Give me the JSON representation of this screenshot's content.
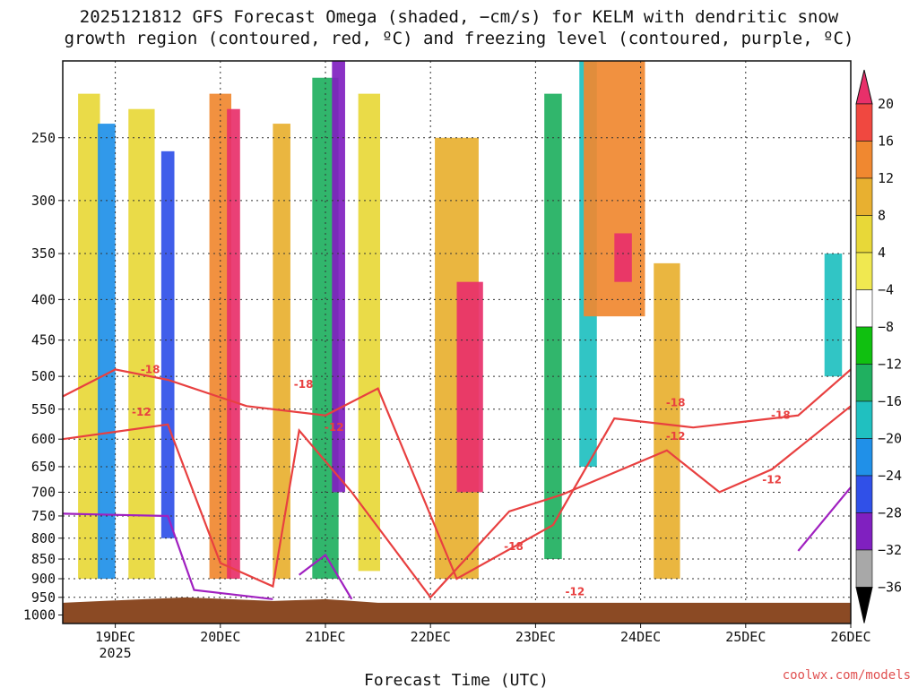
{
  "title_line1": "2025121812 GFS Forecast Omega (shaded, −cm/s) for KELM with dendritic snow",
  "title_line2": "growth region (contoured, red, ºC) and freezing level (contoured, purple, ºC)",
  "credit": "coolwx.com/models",
  "chart_data": {
    "type": "heatmap",
    "xlabel": "Forecast Time (UTC)",
    "ylabel": "",
    "x_ticks": [
      "19DEC",
      "20DEC",
      "21DEC",
      "22DEC",
      "23DEC",
      "24DEC",
      "25DEC",
      "26DEC"
    ],
    "x_tick_year": "2025",
    "xlim_hours": [
      12,
      192
    ],
    "y_ticks": [
      250,
      300,
      350,
      400,
      450,
      500,
      550,
      600,
      650,
      700,
      750,
      800,
      850,
      900,
      950,
      1000
    ],
    "ylim_hpa": [
      200,
      1025
    ],
    "y_scale": "log-pressure (inverted)",
    "grid": true,
    "colorbar": {
      "levels": [
        "20",
        "16",
        "12",
        "8",
        "4",
        "−4",
        "−8",
        "−12",
        "−16",
        "−20",
        "−24",
        "−28",
        "−32",
        "−36"
      ],
      "colors": [
        "#e8306a",
        "#f04840",
        "#f08830",
        "#e8b030",
        "#e8d838",
        "#f0e850",
        "#ffffff",
        "#10c010",
        "#20b060",
        "#20c0c0",
        "#2090e8",
        "#3050e8",
        "#8020c0",
        "#a8a8a8",
        "#000000"
      ]
    },
    "omega_columns": [
      {
        "h": 18,
        "w": 5,
        "top": 220,
        "bot": 900,
        "v": 6
      },
      {
        "h": 22,
        "w": 4,
        "top": 240,
        "bot": 900,
        "v": -16
      },
      {
        "h": 30,
        "w": 6,
        "top": 230,
        "bot": 900,
        "v": 6
      },
      {
        "h": 36,
        "w": 3,
        "top": 260,
        "bot": 800,
        "v": -20
      },
      {
        "h": 48,
        "w": 5,
        "top": 220,
        "bot": 900,
        "v": 14
      },
      {
        "h": 51,
        "w": 3,
        "top": 230,
        "bot": 900,
        "v": 20
      },
      {
        "h": 62,
        "w": 4,
        "top": 240,
        "bot": 900,
        "v": 8
      },
      {
        "h": 72,
        "w": 6,
        "top": 210,
        "bot": 900,
        "v": -8
      },
      {
        "h": 75,
        "w": 3,
        "top": 200,
        "bot": 700,
        "v": -24
      },
      {
        "h": 82,
        "w": 5,
        "top": 220,
        "bot": 880,
        "v": 6
      },
      {
        "h": 102,
        "w": 10,
        "top": 250,
        "bot": 900,
        "v": 8
      },
      {
        "h": 105,
        "w": 6,
        "top": 380,
        "bot": 700,
        "v": 20
      },
      {
        "h": 124,
        "w": 4,
        "top": 220,
        "bot": 850,
        "v": -8
      },
      {
        "h": 132,
        "w": 4,
        "top": 200,
        "bot": 650,
        "v": -12
      },
      {
        "h": 138,
        "w": 14,
        "top": 200,
        "bot": 420,
        "v": 12
      },
      {
        "h": 140,
        "w": 4,
        "top": 330,
        "bot": 380,
        "v": 20
      },
      {
        "h": 150,
        "w": 6,
        "top": 360,
        "bot": 900,
        "v": 8
      },
      {
        "h": 188,
        "w": 4,
        "top": 350,
        "bot": 500,
        "v": -12
      }
    ],
    "contours": [
      {
        "label": "-18",
        "color": "#e84040",
        "points": [
          [
            12,
            530
          ],
          [
            24,
            490
          ],
          [
            36,
            505
          ],
          [
            54,
            545
          ],
          [
            72,
            560
          ],
          [
            84,
            518
          ],
          [
            102,
            900
          ],
          [
            124,
            770
          ],
          [
            138,
            565
          ],
          [
            156,
            580
          ],
          [
            168,
            570
          ],
          [
            180,
            560
          ],
          [
            192,
            490
          ]
        ]
      },
      {
        "label": "-12",
        "color": "#e84040",
        "points": [
          [
            12,
            600
          ],
          [
            36,
            575
          ],
          [
            48,
            860
          ],
          [
            60,
            920
          ],
          [
            66,
            585
          ],
          [
            78,
            700
          ],
          [
            96,
            950
          ],
          [
            114,
            740
          ],
          [
            126,
            705
          ],
          [
            150,
            620
          ],
          [
            162,
            700
          ],
          [
            174,
            655
          ],
          [
            192,
            545
          ]
        ]
      },
      {
        "label": "",
        "color": "#a020c0",
        "points": [
          [
            12,
            745
          ],
          [
            36,
            750
          ],
          [
            42,
            930
          ],
          [
            60,
            955
          ]
        ]
      },
      {
        "label": "",
        "color": "#a020c0",
        "points": [
          [
            66,
            890
          ],
          [
            72,
            840
          ],
          [
            78,
            955
          ]
        ]
      },
      {
        "label": "",
        "color": "#a020c0",
        "points": [
          [
            180,
            830
          ],
          [
            192,
            690
          ]
        ]
      }
    ],
    "contour_labels": [
      {
        "text": "-18",
        "h": 32,
        "p": 490
      },
      {
        "text": "-12",
        "h": 30,
        "p": 555
      },
      {
        "text": "-18",
        "h": 67,
        "p": 512
      },
      {
        "text": "-12",
        "h": 74,
        "p": 580
      },
      {
        "text": "-18",
        "h": 115,
        "p": 820
      },
      {
        "text": "-12",
        "h": 129,
        "p": 935
      },
      {
        "text": "-18",
        "h": 152,
        "p": 540
      },
      {
        "text": "-12",
        "h": 152,
        "p": 595
      },
      {
        "text": "-18",
        "h": 176,
        "p": 560
      },
      {
        "text": "-12",
        "h": 174,
        "p": 675
      }
    ]
  }
}
